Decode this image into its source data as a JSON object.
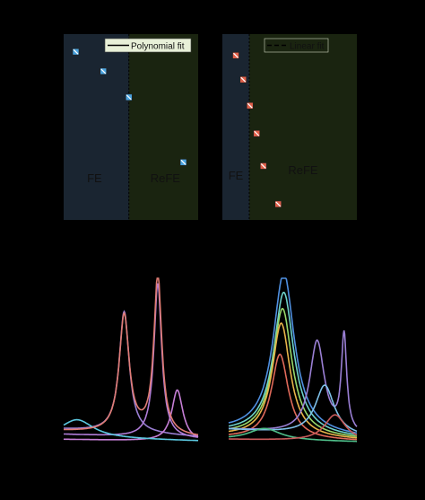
{
  "colors": {
    "background": "#000000",
    "fe_region": "#1a2531",
    "refe_region": "#1a2410",
    "marker_blue": "#4aa3df",
    "marker_red": "#e0604a",
    "legend_bg": "#e8f0d8"
  },
  "chart_data": [
    {
      "id": "top-left",
      "type": "scatter",
      "xlim": [
        0,
        10
      ],
      "ylim": [
        0,
        10
      ],
      "boundary_x": 4.85,
      "regions": [
        {
          "name": "FE",
          "x_from": 0,
          "x_to": 4.85,
          "color": "#1a2531"
        },
        {
          "name": "ReFE",
          "x_from": 4.85,
          "x_to": 10,
          "color": "#1a2410"
        }
      ],
      "region_labels": [
        "FE",
        "ReFE"
      ],
      "legend": {
        "label": "Polynomial fit",
        "placement": "top-right"
      },
      "series": [
        {
          "marker_color": "#4aa3df",
          "points": [
            [
              0.9,
              9.05
            ],
            [
              2.95,
              8.0
            ],
            [
              4.85,
              6.6
            ],
            [
              8.9,
              3.1
            ]
          ]
        }
      ]
    },
    {
      "id": "top-right",
      "type": "scatter",
      "xlim": [
        0,
        10
      ],
      "ylim": [
        0,
        10
      ],
      "boundary_x": 2.0,
      "regions": [
        {
          "name": "FE",
          "x_from": 0,
          "x_to": 2.0,
          "color": "#1a2531"
        },
        {
          "name": "ReFE",
          "x_from": 2.0,
          "x_to": 10,
          "color": "#1a2410"
        }
      ],
      "region_labels": [
        "FE",
        "ReFE"
      ],
      "legend": {
        "label": "Linear fit",
        "placement": "top-right"
      },
      "series": [
        {
          "marker_color": "#e0604a",
          "points": [
            [
              1.0,
              8.85
            ],
            [
              1.55,
              7.55
            ],
            [
              2.05,
              6.15
            ],
            [
              2.55,
              4.65
            ],
            [
              3.05,
              2.9
            ],
            [
              4.15,
              0.85
            ]
          ]
        }
      ]
    },
    {
      "id": "bottom-left",
      "type": "line",
      "xlim": [
        0,
        10
      ],
      "ylim": [
        0,
        10
      ],
      "series": [
        {
          "color": "#9a7fd4",
          "curve": "lorentz",
          "peaks": [
            [
              4.5,
              7.3,
              0.45
            ]
          ],
          "baseline": 0.9
        },
        {
          "color": "#b07cd8",
          "curve": "lorentz",
          "peaks": [
            [
              7.0,
              9.3,
              0.35
            ]
          ],
          "baseline": 0.6
        },
        {
          "color": "#c67fd6",
          "curve": "lorentz",
          "peaks": [
            [
              8.45,
              3.1,
              0.5
            ]
          ],
          "baseline": 0.3
        },
        {
          "color": "#5bc8e0",
          "curve": "lorentz",
          "peaks": [
            [
              1.0,
              1.1,
              1.5
            ]
          ],
          "baseline": 0.4
        },
        {
          "color": "#e07c74",
          "curve": "lorentz",
          "peaks": [
            [
              4.5,
              7.1,
              0.45
            ],
            [
              7.0,
              9.6,
              0.35
            ]
          ],
          "baseline": 0.8
        }
      ]
    },
    {
      "id": "bottom-right",
      "type": "line",
      "xlim": [
        0,
        10
      ],
      "ylim": [
        0,
        10
      ],
      "series": [
        {
          "color": "#4f8fe0",
          "curve": "lorentz",
          "peaks": [
            [
              4.3,
              9.7,
              1.0
            ]
          ],
          "baseline": 0.8
        },
        {
          "color": "#6dd0c8",
          "curve": "lorentz",
          "peaks": [
            [
              4.3,
              8.6,
              0.95
            ]
          ],
          "baseline": 0.7
        },
        {
          "color": "#98d86a",
          "curve": "lorentz",
          "peaks": [
            [
              4.2,
              7.7,
              0.9
            ]
          ],
          "baseline": 0.6
        },
        {
          "color": "#e8b44a",
          "curve": "lorentz",
          "peaks": [
            [
              4.1,
              6.9,
              0.85
            ]
          ],
          "baseline": 0.5
        },
        {
          "color": "#e06a5a",
          "curve": "lorentz",
          "peaks": [
            [
              4.0,
              5.1,
              0.8
            ]
          ],
          "baseline": 0.4
        },
        {
          "color": "#9a7fd4",
          "curve": "lorentz",
          "peaks": [
            [
              6.9,
              5.6,
              0.7
            ],
            [
              9.0,
              5.8,
              0.25
            ]
          ],
          "baseline": 0.9
        },
        {
          "color": "#7ec0e8",
          "curve": "lorentz",
          "peaks": [
            [
              7.5,
              3.0,
              0.9
            ]
          ],
          "baseline": 0.9
        },
        {
          "color": "#4fbf8a",
          "curve": "lorentz",
          "peaks": [
            [
              2.8,
              0.7,
              1.5
            ]
          ],
          "baseline": 0.3
        },
        {
          "color": "#c85a5a",
          "curve": "lorentz",
          "peaks": [
            [
              8.3,
              1.6,
              1.0
            ]
          ],
          "baseline": 0.3
        }
      ]
    }
  ]
}
